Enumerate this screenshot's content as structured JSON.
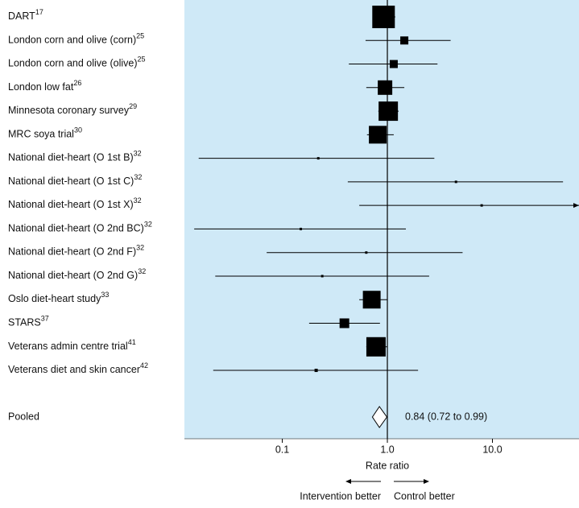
{
  "chart_data": {
    "type": "forest",
    "categories": [
      "DART",
      "London corn and olive (corn)",
      "London corn and olive (olive)",
      "London low fat",
      "Minnesota coronary survey",
      "MRC soya trial",
      "National diet-heart (O 1st B)",
      "National diet-heart (O 1st C)",
      "National diet-heart (O 1st X)",
      "National diet-heart (O 2nd BC)",
      "National diet-heart (O 2nd F)",
      "National diet-heart (O 2nd G)",
      "Oslo diet-heart study",
      "STARS",
      "Veterans admin centre trial",
      "Veterans diet and skin cancer"
    ],
    "refs": [
      "17",
      "25",
      "25",
      "26",
      "29",
      "30",
      "32",
      "32",
      "32",
      "32",
      "32",
      "32",
      "33",
      "37",
      "41",
      "42"
    ],
    "values": [
      0.92,
      1.45,
      1.15,
      0.95,
      1.02,
      0.81,
      0.22,
      4.5,
      7.9,
      0.15,
      0.63,
      0.24,
      0.71,
      0.39,
      0.78,
      0.21
    ],
    "ci_low": [
      0.73,
      0.62,
      0.43,
      0.63,
      0.82,
      0.64,
      0.016,
      0.42,
      0.54,
      0.0145,
      0.071,
      0.023,
      0.54,
      0.18,
      0.63,
      0.022
    ],
    "ci_high": [
      1.19,
      4.0,
      3.0,
      1.45,
      1.28,
      1.15,
      2.8,
      47,
      80,
      1.5,
      5.2,
      2.5,
      1.0,
      0.85,
      1.0,
      1.96
    ],
    "weights": [
      28,
      10,
      10,
      18,
      24,
      22,
      3,
      3,
      3,
      3,
      3,
      3,
      22,
      12,
      24,
      4
    ],
    "pooled": {
      "label": "Pooled",
      "value": 0.84,
      "ci_low": 0.72,
      "ci_high": 0.99,
      "value_label": "0.84 (0.72 to 0.99)"
    },
    "xlabel": "Rate ratio",
    "left_note": "Intervention better",
    "right_note": "Control better",
    "xlim": [
      0.0117,
      66.7
    ],
    "log_x": true,
    "xticks": [
      0.1,
      {
        "value": 1,
        "label": "1.0"
      },
      {
        "value": 10,
        "label": "10.0"
      }
    ],
    "reference_line": 1,
    "background": "#cfe9f7",
    "color": "#000000"
  }
}
